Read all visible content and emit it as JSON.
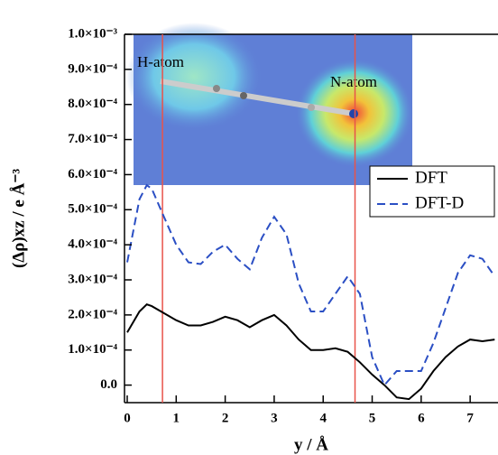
{
  "chart_data": {
    "type": "line",
    "x_label": "y / Å",
    "y_label": "(Δρ)xz / e Å⁻³",
    "x": [
      0,
      0.25,
      0.4,
      0.5,
      0.75,
      1,
      1.25,
      1.5,
      1.75,
      2,
      2.25,
      2.5,
      2.75,
      3,
      3.25,
      3.5,
      3.75,
      4,
      4.25,
      4.5,
      4.75,
      5,
      5.25,
      5.5,
      5.75,
      6,
      6.25,
      6.5,
      6.75,
      7,
      7.25,
      7.5
    ],
    "series": [
      {
        "name": "DFT",
        "color": "#000000",
        "dash": false,
        "values": [
          0.00015,
          0.00021,
          0.00023,
          0.000225,
          0.000205,
          0.000185,
          0.00017,
          0.00017,
          0.00018,
          0.000195,
          0.000185,
          0.000165,
          0.000185,
          0.0002,
          0.00017,
          0.00013,
          0.0001,
          0.0001,
          0.000105,
          9.5e-05,
          6.5e-05,
          3e-05,
          0,
          -3.5e-05,
          -4e-05,
          -1e-05,
          4e-05,
          8e-05,
          0.00011,
          0.00013,
          0.000125,
          0.00013
        ]
      },
      {
        "name": "DFT-D",
        "color": "#2b4fc4",
        "dash": true,
        "values": [
          0.00035,
          0.00053,
          0.00057,
          0.00056,
          0.00048,
          0.0004,
          0.00035,
          0.000345,
          0.00038,
          0.0004,
          0.00036,
          0.00033,
          0.00042,
          0.00048,
          0.00043,
          0.00029,
          0.00021,
          0.00021,
          0.00026,
          0.00031,
          0.00026,
          8e-05,
          0,
          4e-05,
          4e-05,
          4e-05,
          0.00012,
          0.00022,
          0.00032,
          0.00037,
          0.00036,
          0.00031
        ]
      }
    ],
    "vlines": [
      0.72,
      4.65
    ],
    "vline_color": "#e8534a",
    "xlim": [
      0,
      7.55
    ],
    "xticks": [
      0,
      1,
      2,
      3,
      4,
      5,
      6,
      7
    ],
    "ylim": [
      -5e-05,
      0.001
    ],
    "yticks": [
      {
        "value": 0,
        "label": "0.0"
      },
      {
        "value": 0.0001,
        "label": "1.0×10⁻⁴"
      },
      {
        "value": 0.0002,
        "label": "2.0×10⁻⁴"
      },
      {
        "value": 0.0003,
        "label": "3.0×10⁻⁴"
      },
      {
        "value": 0.0004,
        "label": "4.0×10⁻⁴"
      },
      {
        "value": 0.0005,
        "label": "5.0×10⁻⁴"
      },
      {
        "value": 0.0006,
        "label": "6.0×10⁻⁴"
      },
      {
        "value": 0.0007,
        "label": "7.0×10⁻⁴"
      },
      {
        "value": 0.0008,
        "label": "8.0×10⁻⁴"
      },
      {
        "value": 0.0009,
        "label": "9.0×10⁻⁴"
      },
      {
        "value": 0.001,
        "label": "1.0×10⁻³"
      }
    ],
    "legend": "upper right",
    "inset_labels": [
      "H-atom",
      "N-atom"
    ]
  }
}
